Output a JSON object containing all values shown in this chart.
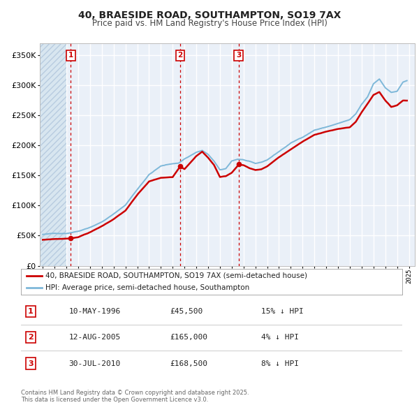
{
  "title": "40, BRAESIDE ROAD, SOUTHAMPTON, SO19 7AX",
  "subtitle": "Price paid vs. HM Land Registry's House Price Index (HPI)",
  "legend_line1": "40, BRAESIDE ROAD, SOUTHAMPTON, SO19 7AX (semi-detached house)",
  "legend_line2": "HPI: Average price, semi-detached house, Southampton",
  "sale_labels": [
    "1",
    "2",
    "3"
  ],
  "sale_info": [
    [
      "1",
      "10-MAY-1996",
      "£45,500",
      "15% ↓ HPI"
    ],
    [
      "2",
      "12-AUG-2005",
      "£165,000",
      "4% ↓ HPI"
    ],
    [
      "3",
      "30-JUL-2010",
      "£168,500",
      "8% ↓ HPI"
    ]
  ],
  "footer1": "Contains HM Land Registry data © Crown copyright and database right 2025.",
  "footer2": "This data is licensed under the Open Government Licence v3.0.",
  "hpi_color": "#7EB8D9",
  "price_color": "#CC0000",
  "vline_color": "#CC0000",
  "bg_color": "#EAF0F8",
  "grid_color": "#FFFFFF",
  "ylim": [
    0,
    370000
  ],
  "yticks": [
    0,
    50000,
    100000,
    150000,
    200000,
    250000,
    300000,
    350000
  ],
  "xlim_start": 1993.75,
  "xlim_end": 2025.5,
  "sale_years": [
    1996.37,
    2005.62,
    2010.58
  ],
  "sale_prices": [
    45500,
    165000,
    168500
  ],
  "hpi_anchors": {
    "1994.0": 52000,
    "1995.0": 53500,
    "1996.0": 54000,
    "1997.0": 58000,
    "1998.0": 65000,
    "1999.0": 74000,
    "2000.0": 87000,
    "2001.0": 102000,
    "2002.0": 128000,
    "2003.0": 153000,
    "2004.0": 167000,
    "2005.0": 171000,
    "2005.5": 172000,
    "2006.0": 179000,
    "2007.0": 190000,
    "2007.5": 193000,
    "2008.0": 186000,
    "2008.5": 175000,
    "2009.0": 160000,
    "2009.5": 162000,
    "2010.0": 175000,
    "2010.5": 178000,
    "2011.0": 177000,
    "2011.5": 174000,
    "2012.0": 170000,
    "2012.5": 172000,
    "2013.0": 176000,
    "2014.0": 190000,
    "2015.0": 204000,
    "2016.0": 214000,
    "2017.0": 226000,
    "2018.0": 231000,
    "2019.0": 237000,
    "2020.0": 243000,
    "2020.5": 252000,
    "2021.0": 268000,
    "2021.5": 280000,
    "2022.0": 302000,
    "2022.5": 310000,
    "2023.0": 296000,
    "2023.5": 288000,
    "2024.0": 290000,
    "2024.5": 305000,
    "2024.9": 308000
  },
  "price_anchors": {
    "1994.0": 43000,
    "1995.0": 44500,
    "1996.0": 45000,
    "1996.37": 45500,
    "1997.0": 48000,
    "1998.0": 56000,
    "1999.0": 66000,
    "2000.0": 78000,
    "2001.0": 92000,
    "2002.0": 118000,
    "2003.0": 140000,
    "2004.0": 146000,
    "2005.0": 147000,
    "2005.62": 165000,
    "2006.0": 161000,
    "2007.0": 183000,
    "2007.5": 190000,
    "2008.0": 180000,
    "2008.5": 168000,
    "2009.0": 148000,
    "2009.5": 149500,
    "2010.0": 155000,
    "2010.58": 168500,
    "2011.0": 168000,
    "2011.5": 163000,
    "2012.0": 160000,
    "2012.5": 161000,
    "2013.0": 166000,
    "2014.0": 181000,
    "2015.0": 194000,
    "2016.0": 207000,
    "2017.0": 218000,
    "2018.0": 224000,
    "2019.0": 228000,
    "2020.0": 231000,
    "2020.5": 240000,
    "2021.0": 256000,
    "2021.5": 270000,
    "2022.0": 285000,
    "2022.5": 290000,
    "2023.0": 276000,
    "2023.5": 265000,
    "2024.0": 268000,
    "2024.5": 276000,
    "2024.9": 276000
  }
}
